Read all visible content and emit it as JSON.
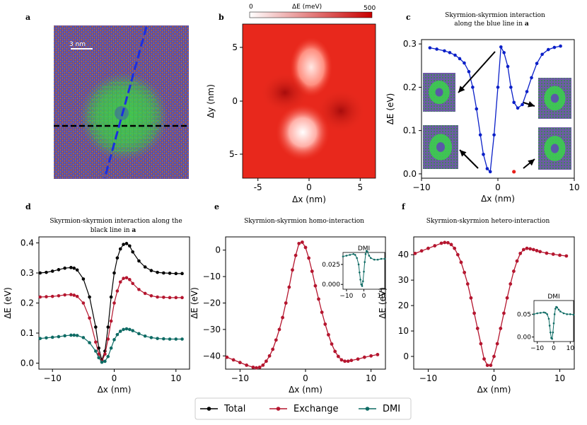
{
  "colors": {
    "total": "#000000",
    "exchange": "#b5162f",
    "dmi": "#0e6b64",
    "blue_curve": "#0a1fc8",
    "red_point": "#e8201a",
    "atom_bg": "#5b5aa0",
    "green_spin": "#3fcf4a"
  },
  "panel_labels": {
    "a": "a",
    "b": "b",
    "c": "c",
    "d": "d",
    "e": "e",
    "f": "f"
  },
  "panel_a": {
    "scale_label": "3 nm"
  },
  "panel_b": {
    "colorbar_label": "ΔE (meV)",
    "colorbar_min": "0",
    "colorbar_max": "500",
    "xlabel": "Δx (nm)",
    "ylabel": "Δy (nm)",
    "xticks": [
      "-5",
      "0",
      "5"
    ],
    "yticks": [
      "5",
      "0",
      "5-"
    ]
  },
  "panel_c": {
    "title_line1": "Skyrmion-skyrmion interaction",
    "title_line2": "along the blue  line in",
    "title_bold": "a",
    "xlabel": "Δx (nm)",
    "ylabel": "ΔE (eV)",
    "xticks": [
      "−10",
      "0",
      "10"
    ],
    "yticks": [
      "0.0",
      "0.1",
      "0.2",
      "0.3"
    ]
  },
  "panel_d": {
    "title_line1": "Skyrmion-skyrmion interaction along the",
    "title_line2": "black line in",
    "title_bold": "a",
    "xlabel": "Δx (nm)",
    "ylabel": "ΔE (eV)",
    "xticks": [
      "−10",
      "0",
      "10"
    ],
    "yticks": [
      "0.0",
      "0.1",
      "0.2",
      "0.3",
      "0.4"
    ]
  },
  "panel_e": {
    "title": "Skyrmion-skyrmion homo-interaction",
    "xlabel": "Δx (nm)",
    "ylabel": "ΔE (eV)",
    "xticks": [
      "−10",
      "0",
      "10"
    ],
    "yticks": [
      "0",
      "−10",
      "−20",
      "−30",
      "−40"
    ],
    "inset_title": "DMI",
    "inset_xticks": [
      "−10",
      "0",
      "10"
    ],
    "inset_yticks": [
      "0.000",
      "0.025"
    ]
  },
  "panel_f": {
    "title": "Skyrmion-skyrmion hetero-interaction",
    "xlabel": "Δx (nm)",
    "ylabel": "ΔE (eV)",
    "xticks": [
      "−10",
      "0",
      "10"
    ],
    "yticks": [
      "0",
      "10",
      "20",
      "30",
      "40"
    ],
    "inset_title": "DMI",
    "inset_xticks": [
      "−10",
      "0",
      "10"
    ],
    "inset_yticks": [
      "0.00",
      "0.05"
    ]
  },
  "legend": {
    "total": "Total",
    "exchange": "Exchange",
    "dmi": "DMI"
  },
  "chart_data": [
    {
      "id": "c",
      "type": "line",
      "title": "Skyrmion-skyrmion interaction along the blue line in a",
      "xlabel": "Δx (nm)",
      "ylabel": "ΔE (eV)",
      "xlim": [
        -10,
        10
      ],
      "ylim": [
        -0.01,
        0.31
      ],
      "series": [
        {
          "name": "blue line",
          "x": [
            -8.9,
            -8,
            -7,
            -6.3,
            -5.6,
            -5,
            -4.4,
            -3.8,
            -3.3,
            -2.8,
            -2.3,
            -1.9,
            -1.4,
            -1,
            -0.5,
            0,
            0.4,
            0.8,
            1.3,
            1.7,
            2.1,
            2.6,
            3.2,
            3.8,
            4.4,
            5.1,
            5.8,
            6.6,
            7.4,
            8.2
          ],
          "y": [
            0.291,
            0.288,
            0.284,
            0.28,
            0.274,
            0.266,
            0.256,
            0.236,
            0.2,
            0.15,
            0.09,
            0.045,
            0.012,
            0.005,
            0.09,
            0.2,
            0.293,
            0.28,
            0.248,
            0.2,
            0.165,
            0.152,
            0.16,
            0.19,
            0.222,
            0.255,
            0.276,
            0.287,
            0.292,
            0.295
          ]
        }
      ],
      "highlight_point": {
        "x": 2.1,
        "y": 0.005
      }
    },
    {
      "id": "d",
      "type": "line",
      "title": "Skyrmion-skyrmion interaction along the black line in a",
      "xlabel": "Δx (nm)",
      "ylabel": "ΔE (eV)",
      "xlim": [
        -12.2,
        12.2
      ],
      "ylim": [
        -0.02,
        0.42
      ],
      "series": [
        {
          "name": "Total",
          "x": [
            -12,
            -11,
            -10,
            -9,
            -8,
            -7,
            -6.5,
            -6,
            -5,
            -4,
            -3,
            -2.5,
            -2,
            -1.5,
            -1,
            -0.5,
            0,
            0.5,
            1,
            1.5,
            2,
            2.5,
            3,
            4,
            5,
            6,
            7,
            8,
            9,
            10,
            11
          ],
          "y": [
            0.3,
            0.302,
            0.306,
            0.311,
            0.316,
            0.318,
            0.316,
            0.31,
            0.28,
            0.22,
            0.12,
            0.05,
            0.01,
            0.04,
            0.12,
            0.22,
            0.3,
            0.35,
            0.38,
            0.395,
            0.398,
            0.39,
            0.37,
            0.34,
            0.32,
            0.308,
            0.302,
            0.3,
            0.299,
            0.298,
            0.298
          ]
        },
        {
          "name": "Exchange",
          "x": [
            -12,
            -11,
            -10,
            -9,
            -8,
            -7,
            -6.5,
            -6,
            -5,
            -4,
            -3,
            -2.5,
            -2,
            -1.5,
            -1,
            -0.5,
            0,
            0.5,
            1,
            1.5,
            2,
            2.5,
            3,
            4,
            5,
            6,
            7,
            8,
            9,
            10,
            11
          ],
          "y": [
            0.22,
            0.221,
            0.222,
            0.224,
            0.227,
            0.228,
            0.226,
            0.222,
            0.2,
            0.15,
            0.07,
            0.03,
            0.005,
            0.03,
            0.08,
            0.14,
            0.2,
            0.24,
            0.27,
            0.282,
            0.284,
            0.278,
            0.265,
            0.245,
            0.232,
            0.224,
            0.22,
            0.219,
            0.218,
            0.218,
            0.218
          ]
        },
        {
          "name": "DMI",
          "x": [
            -12,
            -11,
            -10,
            -9,
            -8,
            -7,
            -6.5,
            -6,
            -5,
            -4,
            -3,
            -2.5,
            -2,
            -1.5,
            -1,
            -0.5,
            0,
            0.5,
            1,
            1.5,
            2,
            2.5,
            3,
            4,
            5,
            6,
            7,
            8,
            9,
            10,
            11
          ],
          "y": [
            0.082,
            0.084,
            0.086,
            0.088,
            0.091,
            0.093,
            0.093,
            0.092,
            0.085,
            0.068,
            0.04,
            0.018,
            0.003,
            0.006,
            0.022,
            0.05,
            0.078,
            0.095,
            0.106,
            0.112,
            0.114,
            0.112,
            0.108,
            0.098,
            0.09,
            0.085,
            0.082,
            0.081,
            0.08,
            0.08,
            0.08
          ]
        }
      ]
    },
    {
      "id": "e",
      "type": "line",
      "title": "Skyrmion-skyrmion homo-interaction",
      "xlabel": "Δx (nm)",
      "ylabel": "ΔE (eV)",
      "xlim": [
        -12.2,
        12.2
      ],
      "ylim": [
        -45,
        5
      ],
      "series": [
        {
          "name": "Exchange",
          "x": [
            -12,
            -11,
            -10,
            -9,
            -8,
            -7.5,
            -7,
            -6.5,
            -6,
            -5.5,
            -5,
            -4.5,
            -4,
            -3.5,
            -3,
            -2.5,
            -2,
            -1.5,
            -1,
            -0.5,
            0,
            0.5,
            1,
            1.5,
            2,
            2.5,
            3,
            3.5,
            4,
            4.5,
            5,
            5.5,
            6,
            6.5,
            7,
            8,
            9,
            10,
            11
          ],
          "y": [
            -40.5,
            -41.5,
            -42.5,
            -43.5,
            -44.3,
            -44.5,
            -44.3,
            -43.5,
            -42,
            -40,
            -37.5,
            -34,
            -30,
            -25.5,
            -20,
            -14,
            -7.5,
            -2,
            2.5,
            3,
            1,
            -3,
            -8,
            -13.5,
            -18.5,
            -23.5,
            -28,
            -32,
            -35.5,
            -38.3,
            -40.2,
            -41.5,
            -42,
            -42,
            -41.7,
            -41.2,
            -40.5,
            -40,
            -39.5
          ]
        }
      ],
      "inset": {
        "title": "DMI",
        "xlim": [
          -12,
          12
        ],
        "ylim": [
          -0.006,
          0.04
        ],
        "x": [
          -12,
          -10,
          -8,
          -6,
          -5,
          -4,
          -3,
          -2.5,
          -2,
          -1.5,
          -1,
          -0.5,
          0,
          0.5,
          1,
          1.5,
          2,
          3,
          4,
          6,
          8,
          10,
          12
        ],
        "y": [
          0.035,
          0.036,
          0.037,
          0.038,
          0.037,
          0.033,
          0.025,
          0.015,
          0.006,
          0.0,
          -0.002,
          0.004,
          0.016,
          0.028,
          0.038,
          0.042,
          0.041,
          0.036,
          0.033,
          0.031,
          0.031,
          0.032,
          0.032
        ]
      }
    },
    {
      "id": "f",
      "type": "line",
      "title": "Skyrmion-skyrmion hetero-interaction",
      "xlabel": "Δx (nm)",
      "ylabel": "ΔE (eV)",
      "xlim": [
        -12.2,
        12.2
      ],
      "ylim": [
        -5,
        47
      ],
      "series": [
        {
          "name": "Exchange",
          "x": [
            -12,
            -11,
            -10,
            -9,
            -8,
            -7.5,
            -7,
            -6.5,
            -6,
            -5.5,
            -5,
            -4.5,
            -4,
            -3.5,
            -3,
            -2.5,
            -2,
            -1.5,
            -1,
            -0.5,
            0,
            0.5,
            1,
            1.5,
            2,
            2.5,
            3,
            3.5,
            4,
            4.5,
            5,
            5.5,
            6,
            6.5,
            7,
            8,
            9,
            10,
            11
          ],
          "y": [
            40.5,
            41.5,
            42.5,
            43.5,
            44.5,
            44.8,
            44.7,
            44,
            42.5,
            40,
            37,
            33,
            28.5,
            23,
            17,
            11,
            5,
            -1,
            -3.5,
            -3.5,
            0,
            5,
            11,
            17,
            23,
            28.5,
            33.5,
            37.5,
            40.5,
            42,
            42.5,
            42.3,
            42,
            41.6,
            41.2,
            40.6,
            40.2,
            39.8,
            39.5
          ]
        }
      ],
      "inset": {
        "title": "DMI",
        "xlim": [
          -12,
          12
        ],
        "ylim": [
          -0.01,
          0.08
        ],
        "x": [
          -12,
          -10,
          -8,
          -6,
          -5,
          -4,
          -3,
          -2.5,
          -2,
          -1.5,
          -1,
          -0.5,
          0,
          0.5,
          1,
          1.5,
          2,
          3,
          4,
          6,
          8,
          10,
          12
        ],
        "y": [
          0.05,
          0.052,
          0.053,
          0.054,
          0.053,
          0.05,
          0.04,
          0.025,
          0.01,
          -0.002,
          -0.004,
          0.01,
          0.03,
          0.05,
          0.062,
          0.066,
          0.065,
          0.06,
          0.056,
          0.052,
          0.05,
          0.05,
          0.049
        ]
      }
    }
  ]
}
